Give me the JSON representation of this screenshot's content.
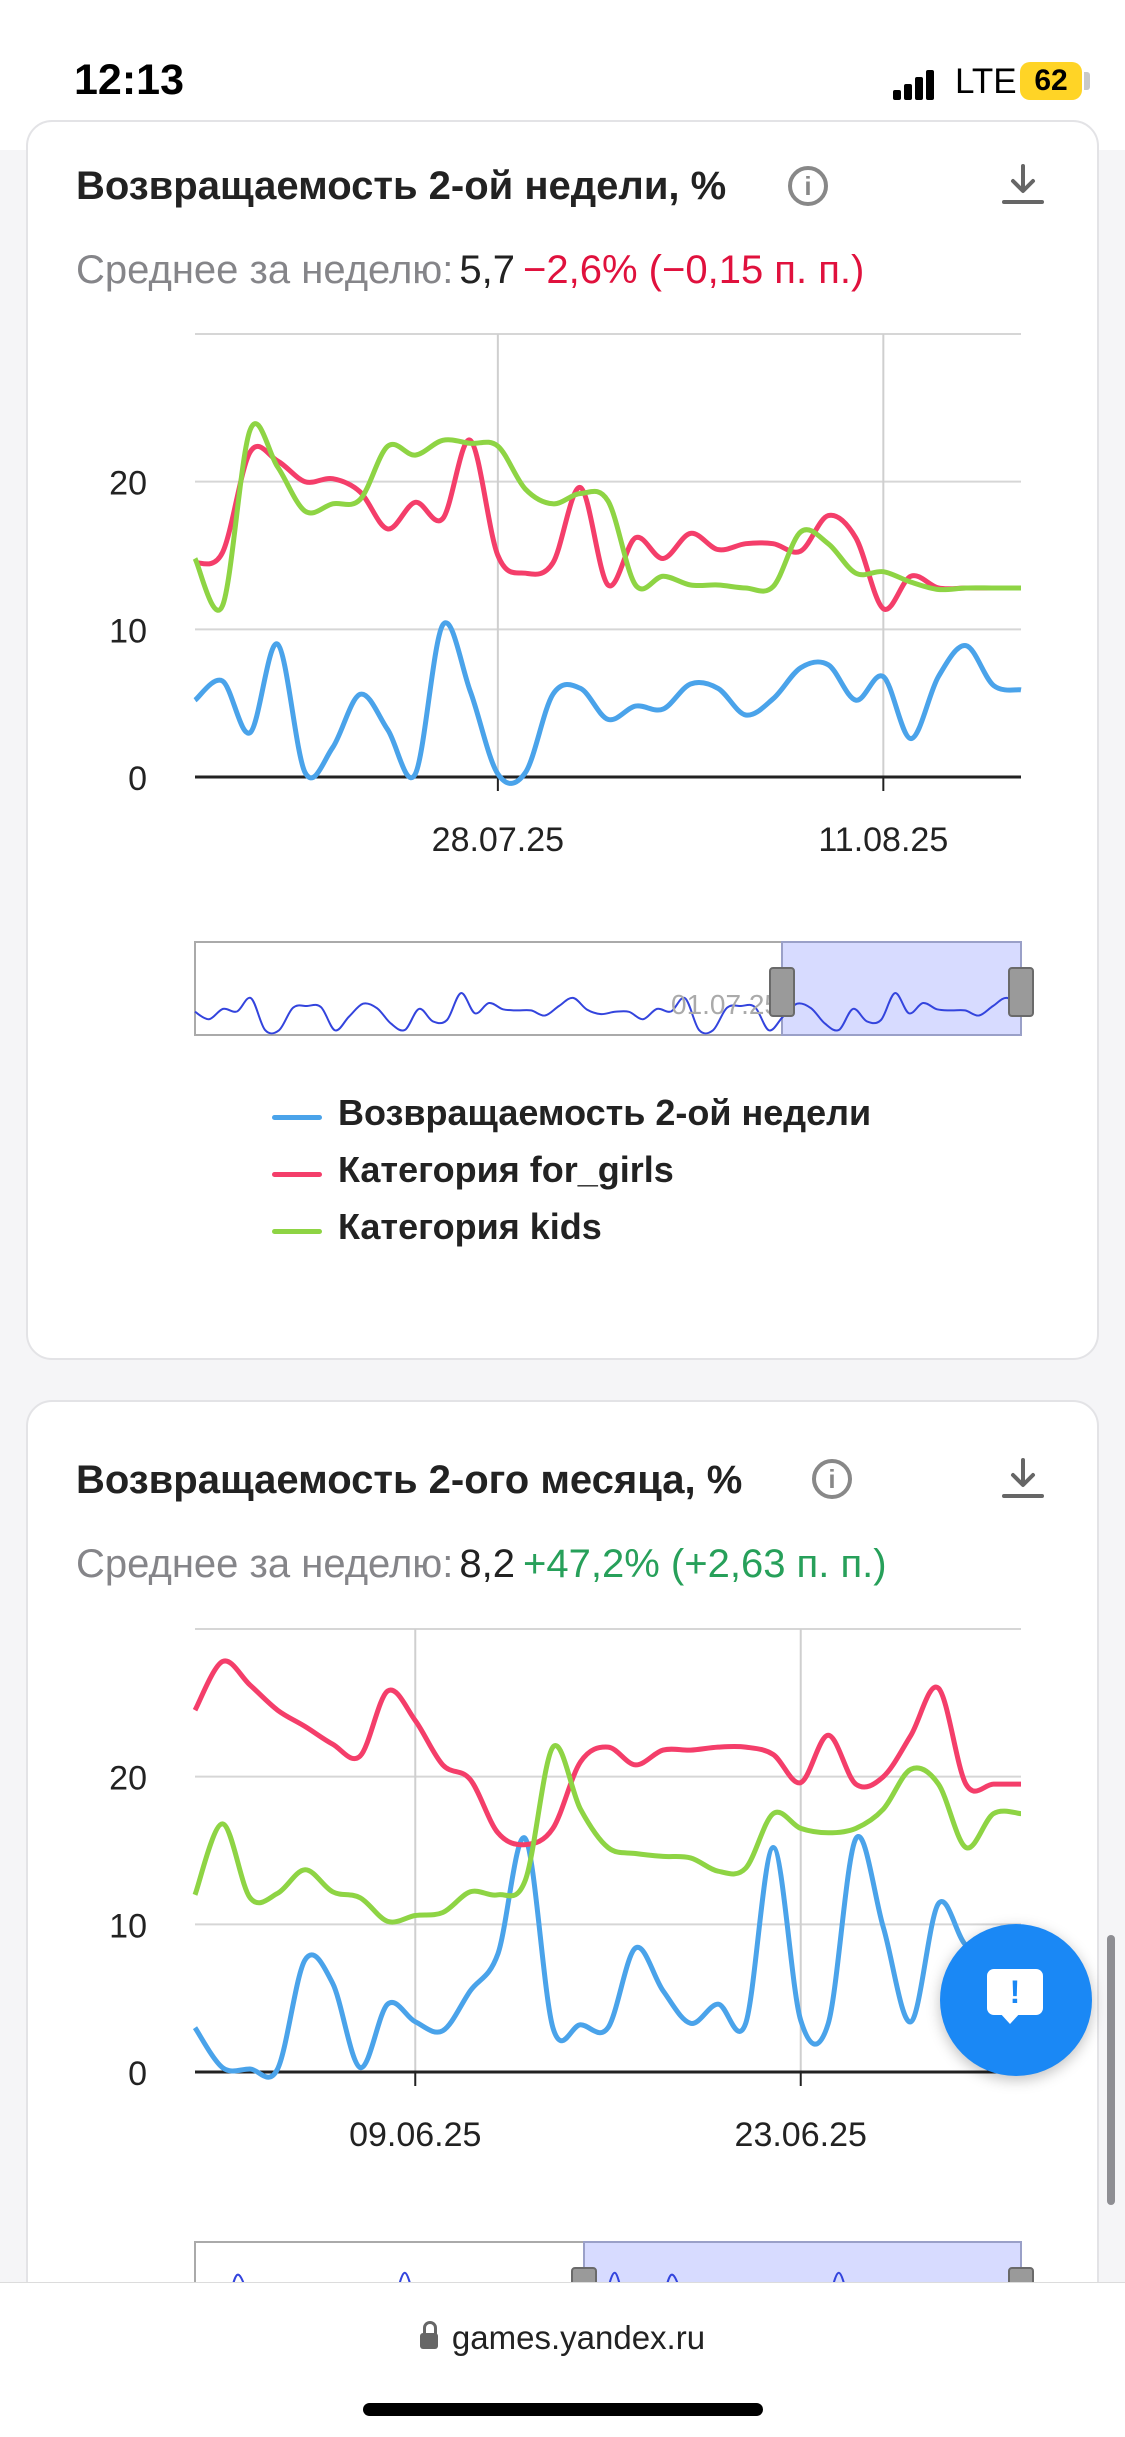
{
  "status_bar": {
    "time": "12:13",
    "network": "LTE",
    "battery": "62"
  },
  "browser": {
    "url": "games.yandex.ru"
  },
  "colors": {
    "blue": "#4aa3ea",
    "red": "#f43e6a",
    "green": "#8ed444",
    "accent": "#1a88f5"
  },
  "icons": {
    "info": "info-icon",
    "download": "download-icon",
    "feedback": "feedback-icon",
    "lock": "lock-icon"
  },
  "cards": [
    {
      "title": "Возвращаемость 2-ой недели, %",
      "avg_label": "Среднее за неделю:",
      "avg_value": "5,7",
      "avg_change": "−2,6% (−0,15 п. п.)",
      "avg_change_sign": "negative",
      "navigator_label": "01.07.25",
      "legend": [
        "Возвращаемость 2-ой недели",
        "Категория for_girls",
        "Категория kids"
      ]
    },
    {
      "title": "Возвращаемость 2-ого месяца, %",
      "avg_label": "Среднее за неделю:",
      "avg_value": "8,2",
      "avg_change": "+47,2% (+2,63 п. п.)",
      "avg_change_sign": "positive"
    }
  ],
  "feedback_button": {
    "label": "!"
  },
  "chart_data": [
    {
      "type": "line",
      "ylim": [
        0,
        30
      ],
      "y_ticks": [
        "0",
        "10",
        "20"
      ],
      "x_tick_labels": [
        "28.07.25",
        "11.08.25"
      ],
      "grid": true,
      "legend_position": "bottom",
      "x": [
        "17.07",
        "18.07",
        "19.07",
        "20.07",
        "21.07",
        "22.07",
        "23.07",
        "24.07",
        "25.07",
        "26.07",
        "27.07",
        "28.07",
        "29.07",
        "30.07",
        "31.07",
        "01.08",
        "02.08",
        "03.08",
        "04.08",
        "05.08",
        "06.08",
        "07.08",
        "08.08",
        "09.08",
        "10.08",
        "11.08",
        "12.08",
        "13.08",
        "14.08",
        "15.08",
        "16.08"
      ],
      "series": [
        {
          "name": "Возвращаемость 2-ой недели",
          "color": "#4aa3ea",
          "values": [
            5.2,
            6.5,
            3.0,
            9.0,
            0.3,
            2.0,
            5.6,
            3.2,
            0.2,
            10.3,
            5.8,
            0.2,
            0.3,
            5.6,
            6.0,
            3.9,
            4.8,
            4.6,
            6.3,
            6.0,
            4.2,
            5.3,
            7.4,
            7.6,
            5.2,
            6.8,
            2.6,
            6.8,
            8.9,
            6.2,
            5.9
          ]
        },
        {
          "name": "Категория for_girls",
          "color": "#f43e6a",
          "values": [
            14.5,
            15.2,
            22.0,
            21.4,
            20.0,
            20.2,
            19.3,
            16.8,
            18.6,
            17.5,
            22.8,
            15.0,
            13.8,
            14.5,
            19.6,
            13.0,
            16.2,
            14.8,
            16.5,
            15.4,
            15.8,
            15.8,
            15.3,
            17.7,
            16.2,
            11.4,
            13.6,
            12.8,
            12.8,
            12.8,
            12.8
          ]
        },
        {
          "name": "Категория kids",
          "color": "#8ed444",
          "values": [
            14.8,
            11.6,
            23.5,
            21.0,
            18.0,
            18.5,
            18.8,
            22.4,
            21.8,
            22.8,
            22.6,
            22.4,
            19.5,
            18.5,
            19.2,
            18.7,
            13.0,
            13.6,
            13.0,
            13.0,
            12.8,
            12.9,
            16.6,
            15.8,
            13.8,
            13.9,
            13.2,
            12.7,
            12.8,
            12.8,
            12.8
          ]
        }
      ]
    },
    {
      "type": "line",
      "ylim": [
        0,
        30
      ],
      "y_ticks": [
        "0",
        "10",
        "20"
      ],
      "x_tick_labels": [
        "09.06.25",
        "23.06.25"
      ],
      "grid": true,
      "x": [
        "01.06",
        "02.06",
        "03.06",
        "04.06",
        "05.06",
        "06.06",
        "07.06",
        "08.06",
        "09.06",
        "10.06",
        "11.06",
        "12.06",
        "13.06",
        "14.06",
        "15.06",
        "16.06",
        "17.06",
        "18.06",
        "19.06",
        "20.06",
        "21.06",
        "22.06",
        "23.06",
        "24.06",
        "25.06",
        "26.06",
        "27.06",
        "28.06",
        "29.06",
        "30.06",
        "01.07"
      ],
      "series": [
        {
          "name": "",
          "color": "#4aa3ea",
          "values": [
            3.0,
            0.3,
            0.2,
            0.2,
            7.6,
            6.0,
            0.3,
            4.6,
            3.4,
            2.8,
            5.5,
            8.0,
            15.8,
            3.0,
            3.2,
            3.0,
            8.4,
            5.5,
            3.3,
            4.6,
            3.3,
            15.2,
            3.5,
            3.3,
            15.8,
            9.8,
            3.4,
            11.4,
            8.6,
            8.6,
            8.6
          ]
        },
        {
          "name": "",
          "color": "#f43e6a",
          "values": [
            24.5,
            27.8,
            26.2,
            24.5,
            23.4,
            22.2,
            21.4,
            25.8,
            23.8,
            20.8,
            19.8,
            16.2,
            15.4,
            16.5,
            21.0,
            22.0,
            20.8,
            21.8,
            21.8,
            22.0,
            22.0,
            21.5,
            19.6,
            22.8,
            19.5,
            20.0,
            22.8,
            26.0,
            19.5,
            19.5,
            19.5
          ]
        },
        {
          "name": "",
          "color": "#8ed444",
          "values": [
            12.0,
            16.8,
            11.8,
            12.1,
            13.7,
            12.2,
            11.8,
            10.2,
            10.6,
            10.8,
            12.2,
            12.0,
            13.0,
            22.0,
            17.8,
            15.2,
            14.8,
            14.6,
            14.5,
            13.6,
            13.8,
            17.5,
            16.5,
            16.2,
            16.5,
            17.8,
            20.5,
            19.5,
            15.2,
            17.5,
            17.5
          ]
        }
      ]
    }
  ]
}
